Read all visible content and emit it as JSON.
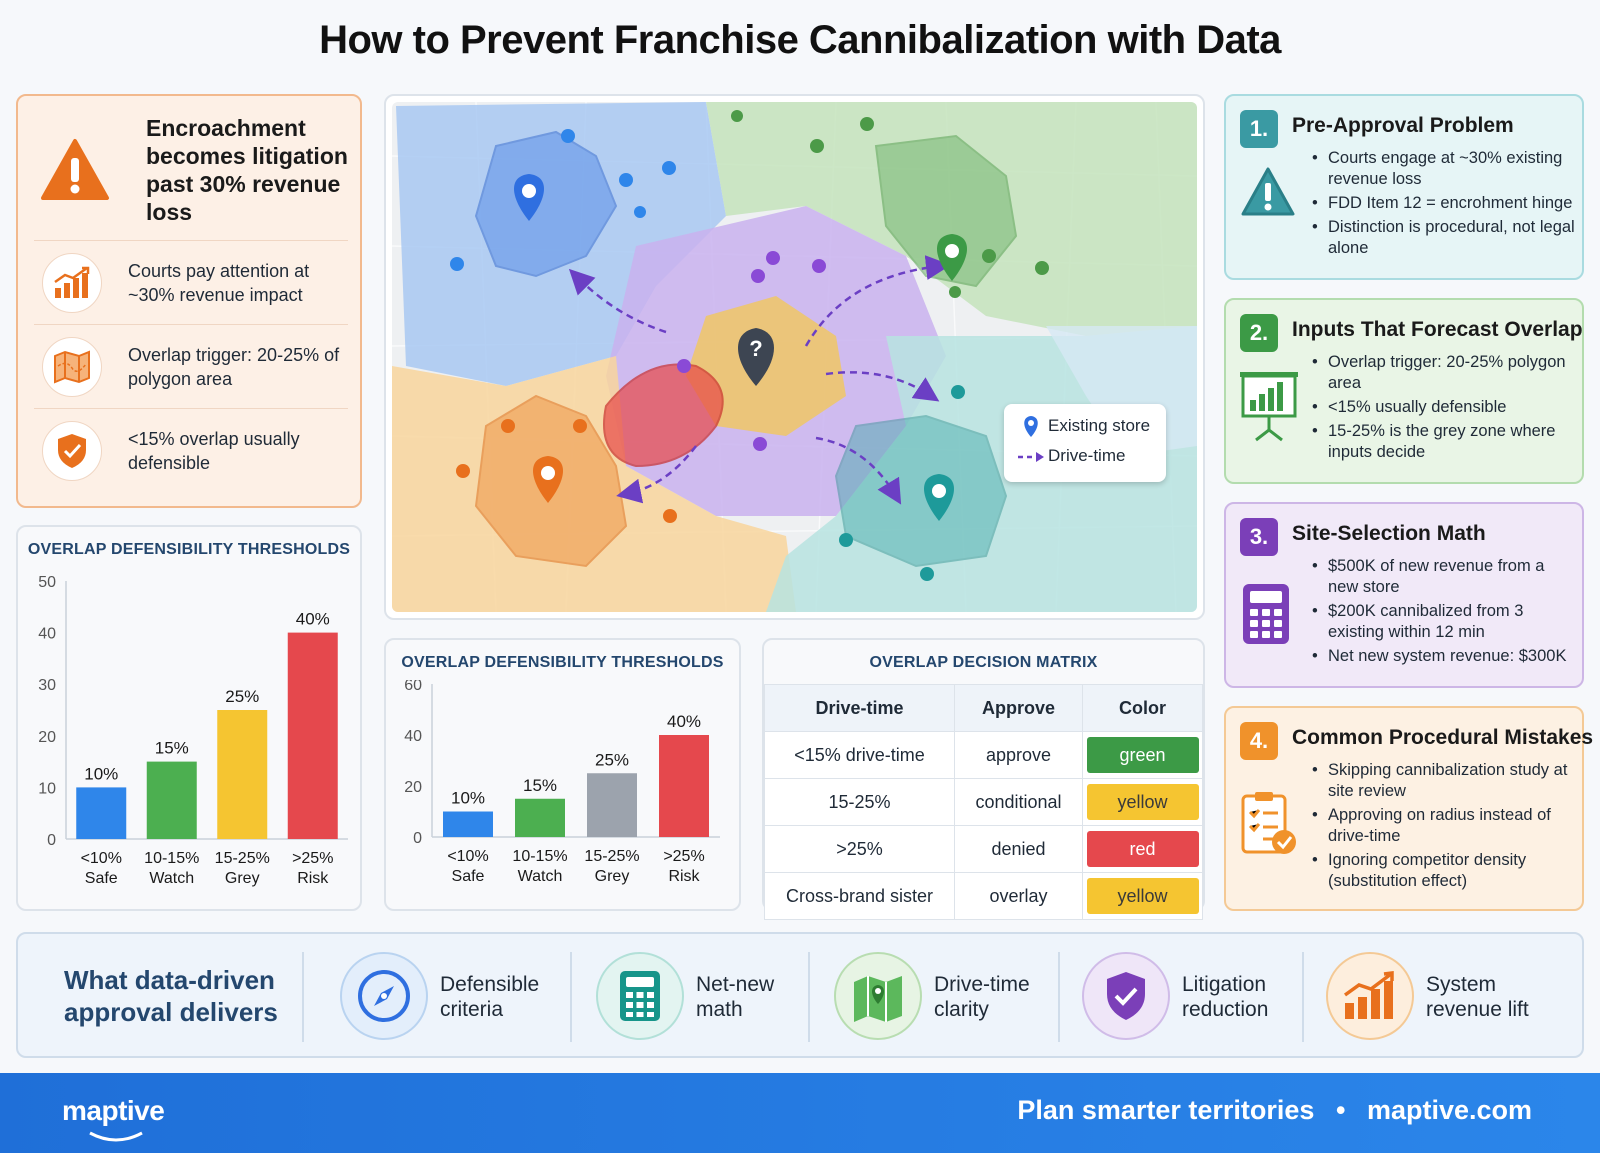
{
  "title": "How to Prevent Franchise Cannibalization with Data",
  "alert": {
    "title": "Encroachment becomes litigation past 30% revenue loss",
    "rows": [
      {
        "icon": "growth-chart-icon",
        "text": "Courts pay attention at ~30% revenue impact"
      },
      {
        "icon": "map-icon",
        "text": "Overlap trigger: 20-25% of polygon area"
      },
      {
        "icon": "shield-check-icon",
        "text": "<15% overlap usually defensible"
      }
    ]
  },
  "chart_data": [
    {
      "type": "bar",
      "title": "OVERLAP DEFENSIBILITY THRESHOLDS",
      "categories": [
        "<10%\nSafe",
        "10-15%\nWatch",
        "15-25%\nGrey",
        ">25%\nRisk"
      ],
      "category_lines": [
        [
          "<10%",
          "Safe"
        ],
        [
          "10-15%",
          "Watch"
        ],
        [
          "15-25%",
          "Grey"
        ],
        [
          ">25%",
          "Risk"
        ]
      ],
      "values": [
        10,
        15,
        25,
        40
      ],
      "data_labels": [
        "10%",
        "15%",
        "25%",
        "40%"
      ],
      "colors": [
        "#2f86ea",
        "#4caf50",
        "#f5c531",
        "#e5484d"
      ],
      "ylim": [
        0,
        50
      ],
      "yticks": [
        0,
        10,
        20,
        30,
        40,
        50
      ],
      "grid": false
    },
    {
      "type": "bar",
      "title": "OVERLAP DEFENSIBILITY THRESHOLDS",
      "categories": [
        "<10%\nSafe",
        "10-15%\nWatch",
        "15-25%\nGrey",
        ">25%\nRisk"
      ],
      "category_lines": [
        [
          "<10%",
          "Safe"
        ],
        [
          "10-15%",
          "Watch"
        ],
        [
          "15-25%",
          "Grey"
        ],
        [
          ">25%",
          "Risk"
        ]
      ],
      "values": [
        10,
        15,
        25,
        40
      ],
      "data_labels": [
        "10%",
        "15%",
        "25%",
        "40%"
      ],
      "colors": [
        "#2f86ea",
        "#4caf50",
        "#9ca3ad",
        "#e5484d"
      ],
      "ylim": [
        0,
        60
      ],
      "yticks": [
        0,
        20,
        40,
        60
      ],
      "grid": false
    }
  ],
  "map": {
    "legend": {
      "existing_store": "Existing store",
      "drive_time": "Drive-time"
    },
    "center_marker_glyph": "?"
  },
  "matrix": {
    "title": "OVERLAP DECISION MATRIX",
    "headers": [
      "Drive-time",
      "Approve",
      "Color"
    ],
    "rows": [
      {
        "drive_time": "<15% drive-time",
        "approve": "approve",
        "color": "green",
        "hex": "#3c9a46"
      },
      {
        "drive_time": "15-25%",
        "approve": "conditional",
        "color": "yellow",
        "hex": "#f5c531"
      },
      {
        "drive_time": ">25%",
        "approve": "denied",
        "color": "red",
        "hex": "#e5484d"
      },
      {
        "drive_time": "Cross-brand sister",
        "approve": "overlay",
        "color": "yellow",
        "hex": "#f5c531"
      }
    ]
  },
  "cards": [
    {
      "num": "1.",
      "title": "Pre-Approval Problem",
      "icon": "warning-triangle-icon",
      "accent": "#3a9aa3",
      "items": [
        "Courts engage at ~30% existing revenue loss",
        "FDD Item 12 = encrohment hinge",
        "Distinction is procedural, not legal alone"
      ]
    },
    {
      "num": "2.",
      "title": "Inputs That Forecast Overlap",
      "icon": "presentation-chart-icon",
      "accent": "#3c9a46",
      "items": [
        "Overlap trigger: 20-25% polygon area",
        "<15% usually defensible",
        "15-25% is the grey zone where inputs decide"
      ]
    },
    {
      "num": "3.",
      "title": "Site-Selection Math",
      "icon": "calculator-icon",
      "accent": "#7b3fb8",
      "items": [
        "$500K of new revenue from a new store",
        "$200K cannibalized from 3 existing within 12 min",
        "Net new system revenue: $300K"
      ]
    },
    {
      "num": "4.",
      "title": "Common Procedural Mistakes",
      "icon": "clipboard-check-icon",
      "accent": "#f0922b",
      "items": [
        "Skipping cannibalization study at site review",
        "Approving on radius instead of drive-time",
        "Ignoring competitor density (substitution effect)"
      ]
    }
  ],
  "bottom": {
    "lead": "What data-driven approval delivers",
    "items": [
      {
        "icon": "compass-icon",
        "label": "Defensible criteria"
      },
      {
        "icon": "calculator-icon",
        "label": "Net-new math"
      },
      {
        "icon": "map-pin-icon",
        "label": "Drive-time clarity"
      },
      {
        "icon": "shield-check-icon",
        "label": "Litigation reduction"
      },
      {
        "icon": "growth-chart-icon",
        "label": "System revenue lift"
      }
    ]
  },
  "footer": {
    "logo": "maptive",
    "tagline": "Plan smarter territories",
    "separator": "•",
    "site": "maptive.com"
  }
}
